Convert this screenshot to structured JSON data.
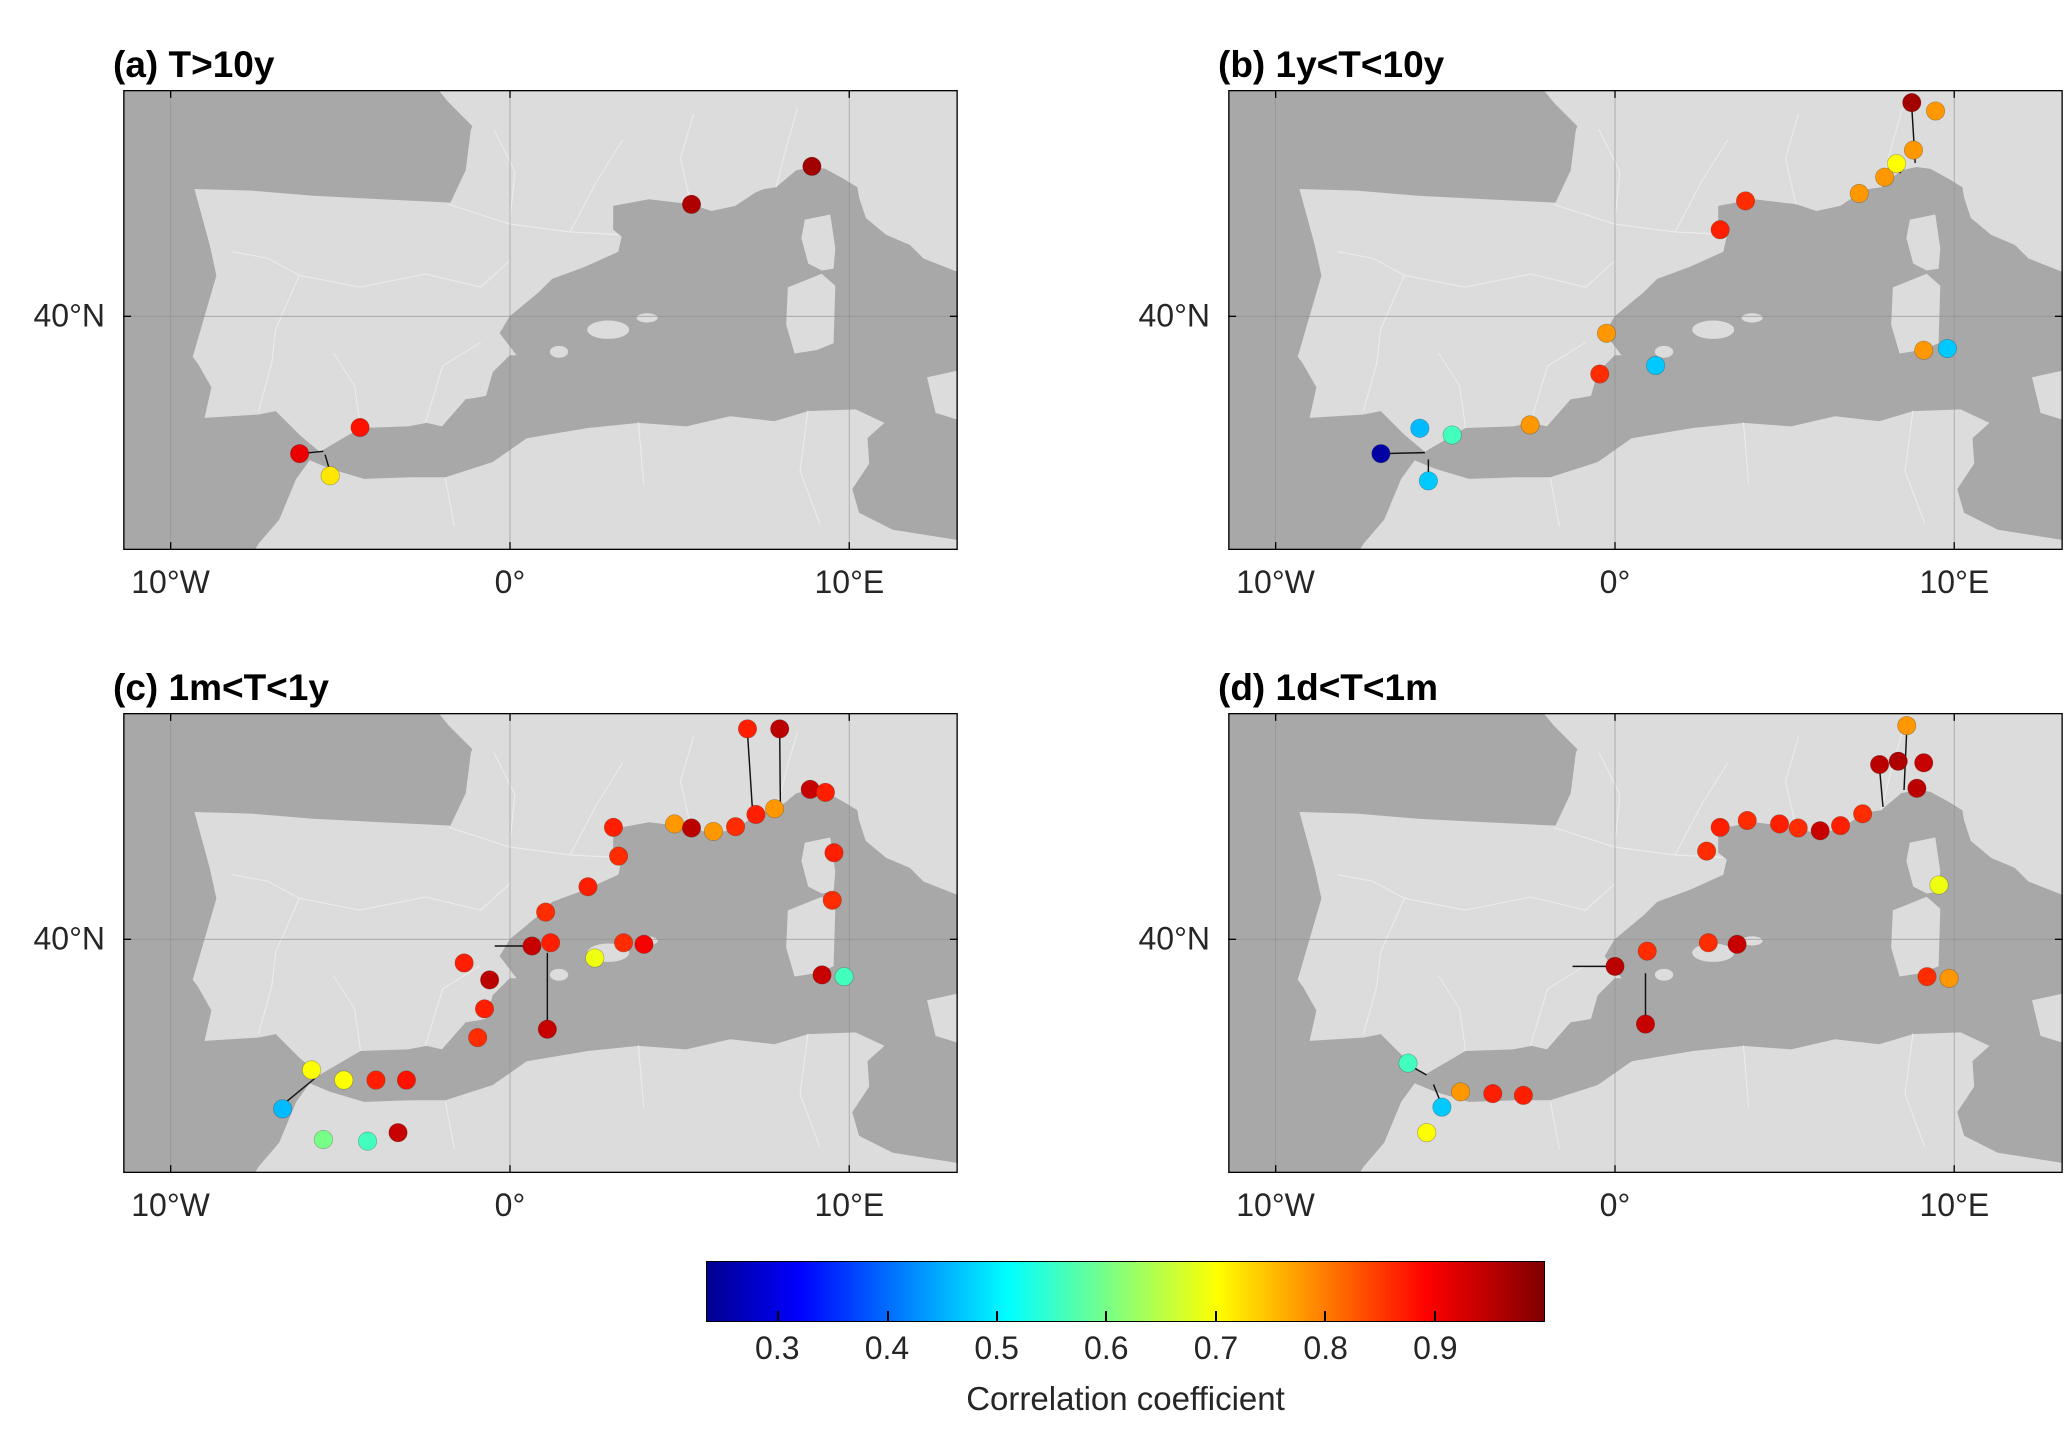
{
  "figure": {
    "colors": {
      "background": "#ffffff",
      "land": "#dcdcdc",
      "sea": "#a8a8a8",
      "grid": "#8f8f8f",
      "frame": "#000000",
      "admin_borders": "#ececec"
    },
    "axes": {
      "lon_min": -11.4,
      "lon_max": 13.2,
      "lat_min": 33.11,
      "lat_max": 46.67,
      "grid_on": true,
      "x_ticks": [
        {
          "label": "10°W",
          "lon": -10
        },
        {
          "label": "0°",
          "lon": 0
        },
        {
          "label": "10°E",
          "lon": 10
        }
      ],
      "y_ticks": [
        {
          "label": "40°N",
          "lat": 40
        }
      ]
    },
    "colorbar": {
      "label": "Correlation coefficient",
      "colormap": "jet",
      "orientation": "horizontal",
      "vmin": 0.235,
      "vmax": 1.0,
      "ticks": [
        "0.3",
        "0.4",
        "0.5",
        "0.6",
        "0.7",
        "0.8",
        "0.9"
      ],
      "tick_values": [
        0.3,
        0.4,
        0.5,
        0.6,
        0.7,
        0.8,
        0.9
      ]
    }
  },
  "chart_data": [
    {
      "type": "scatter",
      "panel": "a",
      "title": "(a) T>10y",
      "value_name": "correlation",
      "points": [
        [
          8.9,
          44.42,
          0.97
        ],
        [
          5.35,
          43.3,
          0.96
        ],
        [
          -4.42,
          36.72,
          0.88
        ],
        [
          -6.2,
          35.95,
          0.91
        ],
        [
          -5.3,
          35.3,
          0.72
        ]
      ],
      "connectors": [
        [
          -6.2,
          35.95,
          -5.5,
          36.02
        ],
        [
          -5.3,
          35.4,
          -5.45,
          35.92
        ]
      ]
    },
    {
      "type": "scatter",
      "panel": "b",
      "title": "(b) 1y<T<10y",
      "value_name": "correlation",
      "points": [
        [
          -6.9,
          35.95,
          0.25
        ],
        [
          -5.75,
          36.7,
          0.46
        ],
        [
          -4.8,
          36.5,
          0.56
        ],
        [
          -2.5,
          36.8,
          0.78
        ],
        [
          -5.5,
          35.15,
          0.47
        ],
        [
          -0.45,
          38.3,
          0.86
        ],
        [
          -0.25,
          39.5,
          0.78
        ],
        [
          1.2,
          38.55,
          0.47
        ],
        [
          3.1,
          42.55,
          0.87
        ],
        [
          3.85,
          43.4,
          0.86
        ],
        [
          7.2,
          43.62,
          0.78
        ],
        [
          7.95,
          44.1,
          0.78
        ],
        [
          8.3,
          44.5,
          0.7
        ],
        [
          8.8,
          44.9,
          0.78
        ],
        [
          8.75,
          46.3,
          0.97
        ],
        [
          9.45,
          46.05,
          0.78
        ],
        [
          9.1,
          39.0,
          0.78
        ],
        [
          9.8,
          39.05,
          0.47
        ]
      ],
      "connectors": [
        [
          -6.9,
          35.95,
          -5.6,
          35.98
        ],
        [
          -5.5,
          35.25,
          -5.5,
          35.78
        ],
        [
          8.75,
          46.17,
          8.85,
          44.52
        ],
        [
          8.3,
          44.4,
          8.42,
          44.22
        ]
      ]
    },
    {
      "type": "scatter",
      "panel": "c",
      "title": "(c) 1m<T<1y",
      "value_name": "correlation",
      "points": [
        [
          -6.7,
          35.0,
          0.46
        ],
        [
          -5.85,
          36.15,
          0.7
        ],
        [
          -4.9,
          35.85,
          0.7
        ],
        [
          -3.95,
          35.85,
          0.87
        ],
        [
          -3.05,
          35.85,
          0.88
        ],
        [
          -5.5,
          34.1,
          0.6
        ],
        [
          -4.2,
          34.05,
          0.56
        ],
        [
          -3.3,
          34.3,
          0.94
        ],
        [
          -1.35,
          39.3,
          0.87
        ],
        [
          -0.6,
          38.8,
          0.95
        ],
        [
          -0.75,
          37.95,
          0.87
        ],
        [
          -0.95,
          37.1,
          0.86
        ],
        [
          0.65,
          39.8,
          0.94
        ],
        [
          1.2,
          39.9,
          0.87
        ],
        [
          1.1,
          37.35,
          0.94
        ],
        [
          2.5,
          39.45,
          0.69
        ],
        [
          3.35,
          39.9,
          0.86
        ],
        [
          3.95,
          39.85,
          0.9
        ],
        [
          1.05,
          40.8,
          0.86
        ],
        [
          2.3,
          41.55,
          0.87
        ],
        [
          3.2,
          42.45,
          0.86
        ],
        [
          3.05,
          43.3,
          0.87
        ],
        [
          4.85,
          43.4,
          0.78
        ],
        [
          5.35,
          43.28,
          0.95
        ],
        [
          6.0,
          43.18,
          0.78
        ],
        [
          6.65,
          43.32,
          0.86
        ],
        [
          7.25,
          43.68,
          0.87
        ],
        [
          7.8,
          43.85,
          0.78
        ],
        [
          7.0,
          46.2,
          0.87
        ],
        [
          7.95,
          46.2,
          0.95
        ],
        [
          8.85,
          44.42,
          0.94
        ],
        [
          9.3,
          44.33,
          0.87
        ],
        [
          9.55,
          42.55,
          0.87
        ],
        [
          9.5,
          41.15,
          0.86
        ],
        [
          9.2,
          38.95,
          0.94
        ],
        [
          9.85,
          38.9,
          0.56
        ]
      ],
      "connectors": [
        [
          -6.7,
          35.12,
          -5.75,
          35.9
        ],
        [
          0.62,
          39.8,
          -0.45,
          39.8
        ],
        [
          1.1,
          37.47,
          1.1,
          39.6
        ],
        [
          7.0,
          46.08,
          7.15,
          43.8
        ],
        [
          7.95,
          46.08,
          7.97,
          43.97
        ]
      ]
    },
    {
      "type": "scatter",
      "panel": "d",
      "title": "(d) 1d<T<1m",
      "value_name": "correlation",
      "points": [
        [
          -6.1,
          36.35,
          0.56
        ],
        [
          -5.1,
          35.05,
          0.47
        ],
        [
          -5.55,
          34.3,
          0.7
        ],
        [
          -4.55,
          35.5,
          0.78
        ],
        [
          -3.6,
          35.45,
          0.87
        ],
        [
          -2.7,
          35.4,
          0.87
        ],
        [
          0.0,
          39.2,
          0.95
        ],
        [
          0.95,
          39.65,
          0.86
        ],
        [
          2.75,
          39.9,
          0.86
        ],
        [
          3.6,
          39.85,
          0.94
        ],
        [
          0.9,
          37.5,
          0.94
        ],
        [
          2.7,
          42.6,
          0.86
        ],
        [
          3.1,
          43.3,
          0.87
        ],
        [
          3.9,
          43.5,
          0.86
        ],
        [
          4.85,
          43.4,
          0.87
        ],
        [
          5.4,
          43.28,
          0.86
        ],
        [
          6.05,
          43.2,
          0.94
        ],
        [
          6.65,
          43.35,
          0.87
        ],
        [
          7.3,
          43.7,
          0.86
        ],
        [
          7.8,
          45.15,
          0.95
        ],
        [
          8.35,
          45.25,
          0.96
        ],
        [
          9.1,
          45.2,
          0.94
        ],
        [
          8.6,
          46.3,
          0.78
        ],
        [
          8.9,
          44.45,
          0.95
        ],
        [
          9.55,
          41.6,
          0.69
        ],
        [
          9.2,
          38.9,
          0.86
        ],
        [
          9.85,
          38.85,
          0.78
        ]
      ],
      "connectors": [
        [
          -6.05,
          36.28,
          -5.55,
          36.0
        ],
        [
          -5.12,
          35.15,
          -5.35,
          35.72
        ],
        [
          0.0,
          39.2,
          -1.25,
          39.2
        ],
        [
          0.9,
          37.62,
          0.9,
          39.0
        ],
        [
          7.8,
          45.03,
          7.9,
          43.9
        ],
        [
          8.6,
          46.18,
          8.52,
          44.4
        ]
      ]
    }
  ]
}
